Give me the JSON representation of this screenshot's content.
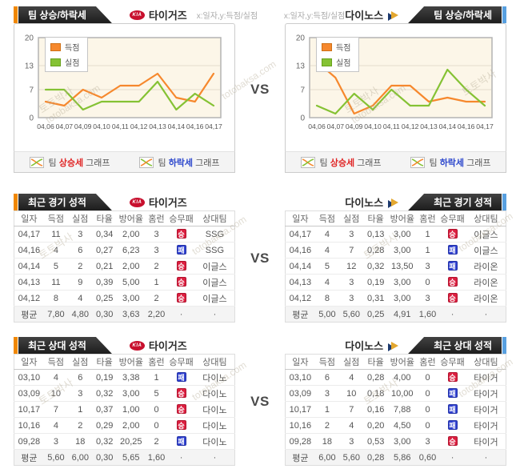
{
  "vs": "VS",
  "watermark": {
    "kr": "토토박사",
    "en": "totobaksa.com"
  },
  "sections": {
    "trend": {
      "title": "팀 상승/하락세",
      "axis_caption": "x:일자,y:득점/실점"
    },
    "recent": {
      "title": "최근 경기 성적"
    },
    "head2head": {
      "title": "최근 상대 성적"
    }
  },
  "teams": {
    "left": {
      "name": "타이거즈",
      "logo_text": "KIA"
    },
    "right": {
      "name": "다이노스"
    }
  },
  "legend": {
    "score": "득점",
    "concede": "실점"
  },
  "graph_links": {
    "rise_pre": "팀 ",
    "rise_em": "상승세",
    "rise_post": " 그래프",
    "fall_pre": "팀 ",
    "fall_em": "하락세",
    "fall_post": " 그래프"
  },
  "badges": {
    "win": "승",
    "loss": "패"
  },
  "table_columns": [
    "일자",
    "득점",
    "실점",
    "타율",
    "방어율",
    "홈런",
    "승무패",
    "상대팀"
  ],
  "tables": {
    "recent_left": {
      "rows": [
        [
          "04,17",
          "11",
          "3",
          "0,34",
          "2,00",
          "3",
          "승",
          "SSG"
        ],
        [
          "04,16",
          "4",
          "6",
          "0,27",
          "6,23",
          "3",
          "패",
          "SSG"
        ],
        [
          "04,14",
          "5",
          "2",
          "0,21",
          "2,00",
          "2",
          "승",
          "이글스"
        ],
        [
          "04,13",
          "11",
          "9",
          "0,39",
          "5,00",
          "1",
          "승",
          "이글스"
        ],
        [
          "04,12",
          "8",
          "4",
          "0,25",
          "3,00",
          "2",
          "승",
          "이글스"
        ]
      ],
      "avg": [
        "평균",
        "7,80",
        "4,80",
        "0,30",
        "3,63",
        "2,20",
        "·",
        "·"
      ]
    },
    "recent_right": {
      "rows": [
        [
          "04,17",
          "4",
          "3",
          "0,13",
          "3,00",
          "1",
          "승",
          "이글스"
        ],
        [
          "04,16",
          "4",
          "7",
          "0,28",
          "3,00",
          "1",
          "패",
          "이글스"
        ],
        [
          "04,14",
          "5",
          "12",
          "0,32",
          "13,50",
          "3",
          "패",
          "라이온"
        ],
        [
          "04,13",
          "4",
          "3",
          "0,19",
          "3,00",
          "0",
          "승",
          "라이온"
        ],
        [
          "04,12",
          "8",
          "3",
          "0,31",
          "3,00",
          "3",
          "승",
          "라이온"
        ]
      ],
      "avg": [
        "평균",
        "5,00",
        "5,60",
        "0,25",
        "4,91",
        "1,60",
        "·",
        "·"
      ]
    },
    "h2h_left": {
      "rows": [
        [
          "03,10",
          "4",
          "6",
          "0,19",
          "3,38",
          "1",
          "패",
          "다이노"
        ],
        [
          "03,09",
          "10",
          "3",
          "0,32",
          "3,00",
          "5",
          "승",
          "다이노"
        ],
        [
          "10,17",
          "7",
          "1",
          "0,37",
          "1,00",
          "0",
          "승",
          "다이노"
        ],
        [
          "10,16",
          "4",
          "2",
          "0,29",
          "2,00",
          "0",
          "승",
          "다이노"
        ],
        [
          "09,28",
          "3",
          "18",
          "0,32",
          "20,25",
          "2",
          "패",
          "다이노"
        ]
      ],
      "avg": [
        "평균",
        "5,60",
        "6,00",
        "0,30",
        "5,65",
        "1,60",
        "·",
        "·"
      ]
    },
    "h2h_right": {
      "rows": [
        [
          "03,10",
          "6",
          "4",
          "0,28",
          "4,00",
          "0",
          "승",
          "타이거"
        ],
        [
          "03,09",
          "3",
          "10",
          "0,18",
          "10,00",
          "0",
          "패",
          "타이거"
        ],
        [
          "10,17",
          "1",
          "7",
          "0,16",
          "7,88",
          "0",
          "패",
          "타이거"
        ],
        [
          "10,16",
          "2",
          "4",
          "0,20",
          "4,50",
          "0",
          "패",
          "타이거"
        ],
        [
          "09,28",
          "18",
          "3",
          "0,53",
          "3,00",
          "3",
          "승",
          "타이거"
        ]
      ],
      "avg": [
        "평균",
        "6,00",
        "5,60",
        "0,28",
        "5,86",
        "0,60",
        "·",
        "·"
      ]
    }
  },
  "chart_data": [
    {
      "type": "line",
      "title": "타이거즈 팀 상승/하락세",
      "x": [
        "04,06",
        "04,07",
        "04,09",
        "04,10",
        "04,11",
        "04,12",
        "04,13",
        "04,14",
        "04,16",
        "04,17"
      ],
      "ylim": [
        0,
        20
      ],
      "yticks": [
        20,
        13,
        7,
        0
      ],
      "plot_bg": "#fcf6e8",
      "grid": true,
      "legend_position": "top-left",
      "series": [
        {
          "name": "득점",
          "color": "#f6882d",
          "values": [
            4,
            3,
            7,
            5,
            8,
            8,
            11,
            5,
            4,
            11
          ]
        },
        {
          "name": "실점",
          "color": "#85c234",
          "values": [
            7,
            7,
            2,
            4,
            4,
            4,
            9,
            2,
            6,
            3
          ]
        }
      ]
    },
    {
      "type": "line",
      "title": "다이노스 팀 상승/하락세",
      "x": [
        "04,06",
        "04,07",
        "04,09",
        "04,10",
        "04,11",
        "04,12",
        "04,13",
        "04,14",
        "04,16",
        "04,17"
      ],
      "ylim": [
        0,
        20
      ],
      "yticks": [
        20,
        13,
        7,
        0
      ],
      "plot_bg": "#fcf6e8",
      "grid": true,
      "legend_position": "top-left",
      "series": [
        {
          "name": "득점",
          "color": "#f6882d",
          "values": [
            14,
            10,
            1,
            3,
            8,
            8,
            4,
            5,
            4,
            4
          ]
        },
        {
          "name": "실점",
          "color": "#85c234",
          "values": [
            3,
            1,
            6,
            2,
            7,
            3,
            3,
            12,
            7,
            3
          ]
        }
      ]
    }
  ]
}
